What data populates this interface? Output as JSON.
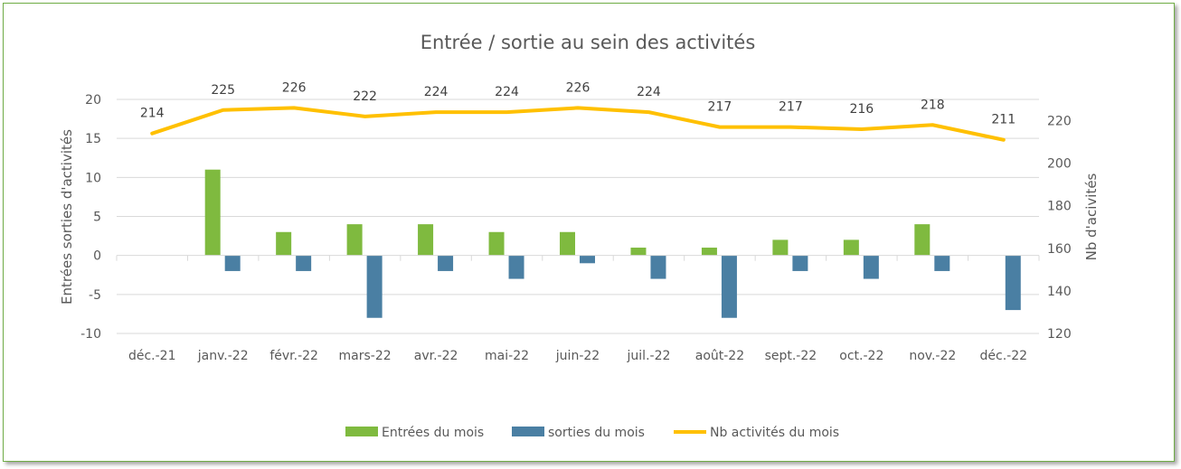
{
  "chart_data": {
    "type": "bar+line",
    "title": "Entrée / sortie au sein des activités",
    "categories": [
      "déc.-21",
      "janv.-22",
      "févr.-22",
      "mars-22",
      "avr.-22",
      "mai-22",
      "juin-22",
      "juil.-22",
      "août-22",
      "sept.-22",
      "oct.-22",
      "nov.-22",
      "déc.-22"
    ],
    "series": [
      {
        "name": "Entrées du mois",
        "type": "bar",
        "axis": "left",
        "color": "#7fba3f",
        "values": [
          0,
          11,
          3,
          4,
          4,
          3,
          3,
          1,
          1,
          2,
          2,
          4,
          0
        ]
      },
      {
        "name": "sorties du mois",
        "type": "bar",
        "axis": "left",
        "color": "#4a7fa3",
        "values": [
          0,
          -2,
          -2,
          -8,
          -2,
          -3,
          -1,
          -3,
          -8,
          -2,
          -3,
          -2,
          -7
        ]
      },
      {
        "name": "Nb activités du mois",
        "type": "line",
        "axis": "right",
        "color": "#ffc000",
        "values": [
          214,
          225,
          226,
          222,
          224,
          224,
          226,
          224,
          217,
          217,
          216,
          218,
          211
        ],
        "data_labels": true
      }
    ],
    "ylabel": "Entrées sorties d'activités",
    "ylim": [
      -10,
      20
    ],
    "yticks": [
      "-10",
      "-5",
      "0",
      "5",
      "10",
      "15",
      "20"
    ],
    "y2label": "Nb d'acivités",
    "y2lim": [
      120,
      230
    ],
    "y2ticks": [
      "120",
      "140",
      "160",
      "180",
      "200",
      "220"
    ],
    "grid": true,
    "legend": "bottom"
  }
}
